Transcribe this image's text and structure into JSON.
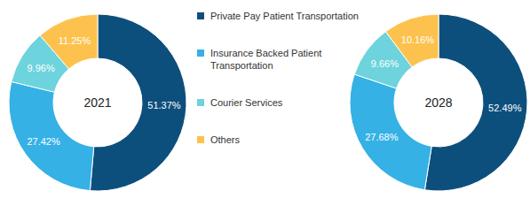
{
  "chart_data": {
    "type": "pie",
    "categories": [
      "Private Pay Patient Transportation",
      "Insurance Backed Patient Transportation",
      "Courier Services",
      "Others"
    ],
    "colors": [
      "#0d4f7c",
      "#35b1e5",
      "#6dd3dc",
      "#fdc24e"
    ],
    "data_labels": true,
    "legend": "center",
    "series": [
      {
        "name": "2021",
        "values": [
          51.37,
          27.42,
          9.96,
          11.25
        ],
        "value_labels": [
          "51.37%",
          "27.42%",
          "9.96%",
          "11.25%"
        ]
      },
      {
        "name": "2028",
        "values": [
          52.49,
          27.68,
          9.66,
          10.16
        ],
        "value_labels": [
          "52.49%",
          "27.68%",
          "9.66%",
          "10.16%"
        ]
      }
    ]
  }
}
